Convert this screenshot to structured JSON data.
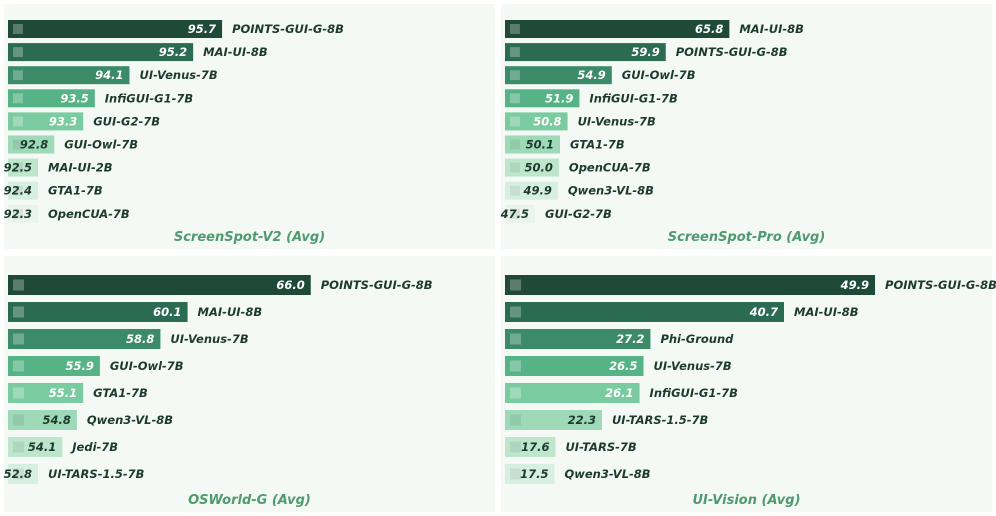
{
  "colors": {
    "rank_fills": [
      "#1f4a3a",
      "#2b6b53",
      "#3b8a68",
      "#55b386",
      "#7acb9f",
      "#9ed9b8",
      "#bde6cd",
      "#d7efe0",
      "#e8f4ec"
    ],
    "panel_bg": "#f4f9f5",
    "title": "#4f9a6e",
    "value_on_dark": "#ffffff",
    "value_on_light": "#1d3a2e",
    "model_label": "#1d3a2e"
  },
  "chart_data": [
    {
      "type": "bar",
      "orientation": "horizontal",
      "title": "ScreenSpot-V2 (Avg)",
      "xlim": [
        92.0,
        96.2
      ],
      "categories": [
        "POINTS-GUI-G-8B",
        "MAI-UI-8B",
        "UI-Venus-7B",
        "InfiGUI-G1-7B",
        "GUI-G2-7B",
        "GUI-Owl-7B",
        "MAI-UI-2B",
        "GTA1-7B",
        "OpenCUA-7B"
      ],
      "values": [
        95.7,
        95.2,
        94.1,
        93.5,
        93.3,
        92.8,
        92.5,
        92.4,
        92.3
      ],
      "value_labels": [
        "95.7",
        "95.2",
        "94.1",
        "93.5",
        "93.3",
        "92.8",
        "92.5",
        "92.4",
        "92.3"
      ]
    },
    {
      "type": "bar",
      "orientation": "horizontal",
      "title": "ScreenSpot-Pro (Avg)",
      "xlim": [
        45.0,
        66.6
      ],
      "categories": [
        "MAI-UI-8B",
        "POINTS-GUI-G-8B",
        "GUI-Owl-7B",
        "InfiGUI-G1-7B",
        "UI-Venus-7B",
        "GTA1-7B",
        "OpenCUA-7B",
        "Qwen3-VL-8B",
        "GUI-G2-7B"
      ],
      "values": [
        65.8,
        59.9,
        54.9,
        51.9,
        50.8,
        50.1,
        50.0,
        49.9,
        47.5
      ],
      "value_labels": [
        "65.8",
        "59.9",
        "54.9",
        "51.9",
        "50.8",
        "50.1",
        "50.0",
        "49.9",
        "47.5"
      ]
    },
    {
      "type": "bar",
      "orientation": "horizontal",
      "title": "OSWorld-G (Avg)",
      "xlim": [
        51.5,
        66.3
      ],
      "categories": [
        "POINTS-GUI-G-8B",
        "MAI-UI-8B",
        "UI-Venus-7B",
        "GUI-Owl-7B",
        "GTA1-7B",
        "Qwen3-VL-8B",
        "Jedi-7B",
        "UI-TARS-1.5-7B"
      ],
      "values": [
        66.0,
        60.1,
        58.8,
        55.9,
        55.1,
        54.8,
        54.1,
        52.8
      ],
      "value_labels": [
        "66.0",
        "60.1",
        "58.8",
        "55.9",
        "55.1",
        "54.8",
        "54.1",
        "52.8"
      ]
    },
    {
      "type": "bar",
      "orientation": "horizontal",
      "title": "UI-Vision (Avg)",
      "xlim": [
        12.5,
        50.2
      ],
      "categories": [
        "POINTS-GUI-G-8B",
        "MAI-UI-8B",
        "Phi-Ground",
        "UI-Venus-7B",
        "InfiGUI-G1-7B",
        "UI-TARS-1.5-7B",
        "UI-TARS-7B",
        "Qwen3-VL-8B"
      ],
      "values": [
        49.9,
        40.7,
        27.2,
        26.5,
        26.1,
        22.3,
        17.6,
        17.5
      ],
      "value_labels": [
        "49.9",
        "40.7",
        "27.2",
        "26.5",
        "26.1",
        "22.3",
        "17.6",
        "17.5"
      ]
    }
  ]
}
